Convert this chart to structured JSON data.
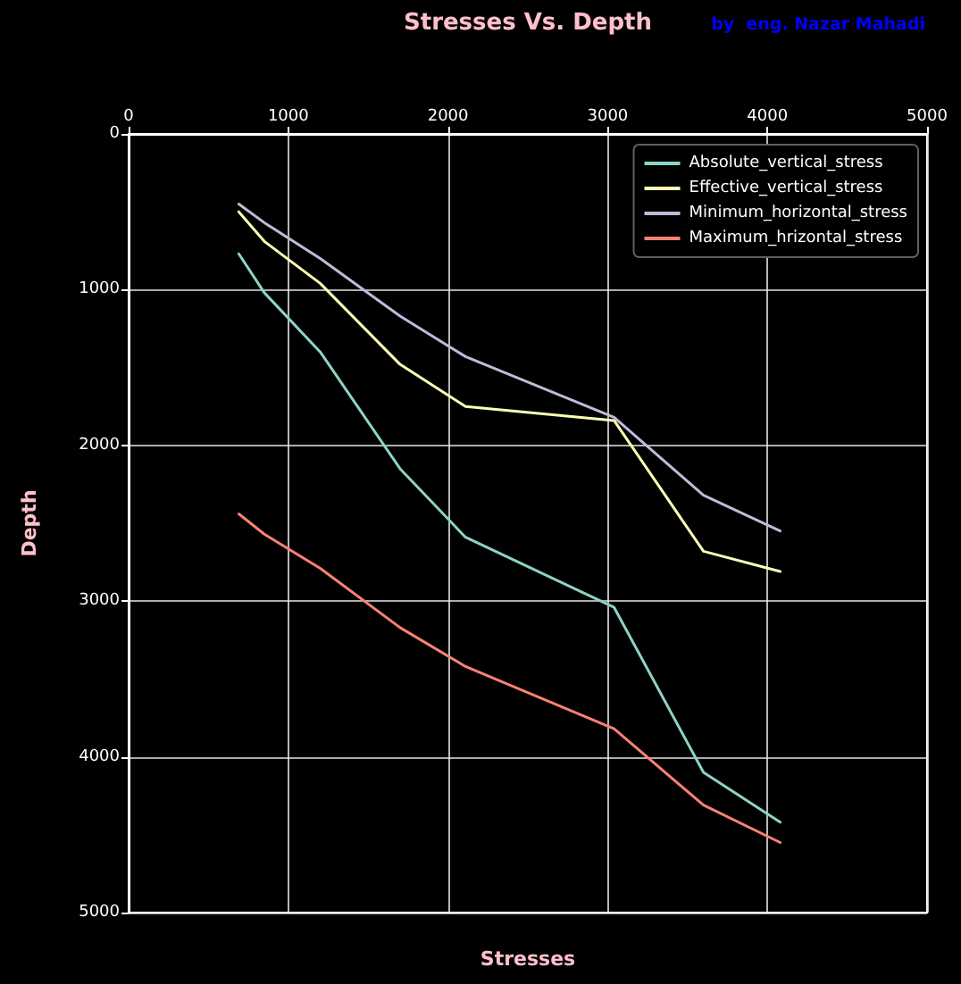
{
  "chart_data": {
    "type": "line",
    "title": "Stresses Vs. Depth",
    "xlabel": "Stresses",
    "ylabel": "Depth",
    "annotations": [
      "by  eng. Nazar Mahadi"
    ],
    "x": [
      690,
      850,
      1200,
      1700,
      2110,
      3040,
      3600,
      4080
    ],
    "series": [
      {
        "name": "Absolute_vertical_stress",
        "color": "#8dd3c7",
        "values": [
          770,
          1020,
          1400,
          2150,
          2590,
          3040,
          4100,
          4420
        ]
      },
      {
        "name": "Effective_vertical_stress",
        "color": "#feffb3",
        "values": [
          500,
          690,
          960,
          1480,
          1750,
          1840,
          2680,
          2810
        ]
      },
      {
        "name": "Minimum_horizontal_stress",
        "color": "#bfbbd9",
        "values": [
          450,
          570,
          800,
          1170,
          1430,
          1820,
          2320,
          2550
        ]
      },
      {
        "name": "Maximum_hrizontal_stress",
        "color": "#fa8174",
        "values": [
          2440,
          2570,
          2790,
          3170,
          3420,
          3820,
          4310,
          4550
        ]
      }
    ],
    "xlim": [
      0,
      5000
    ],
    "xticks": [
      0,
      1000,
      2000,
      3000,
      4000,
      5000
    ],
    "ylim": [
      5000,
      0
    ],
    "yticks": [
      0,
      1000,
      2000,
      3000,
      4000,
      5000
    ],
    "grid": true,
    "legend": "top right"
  }
}
